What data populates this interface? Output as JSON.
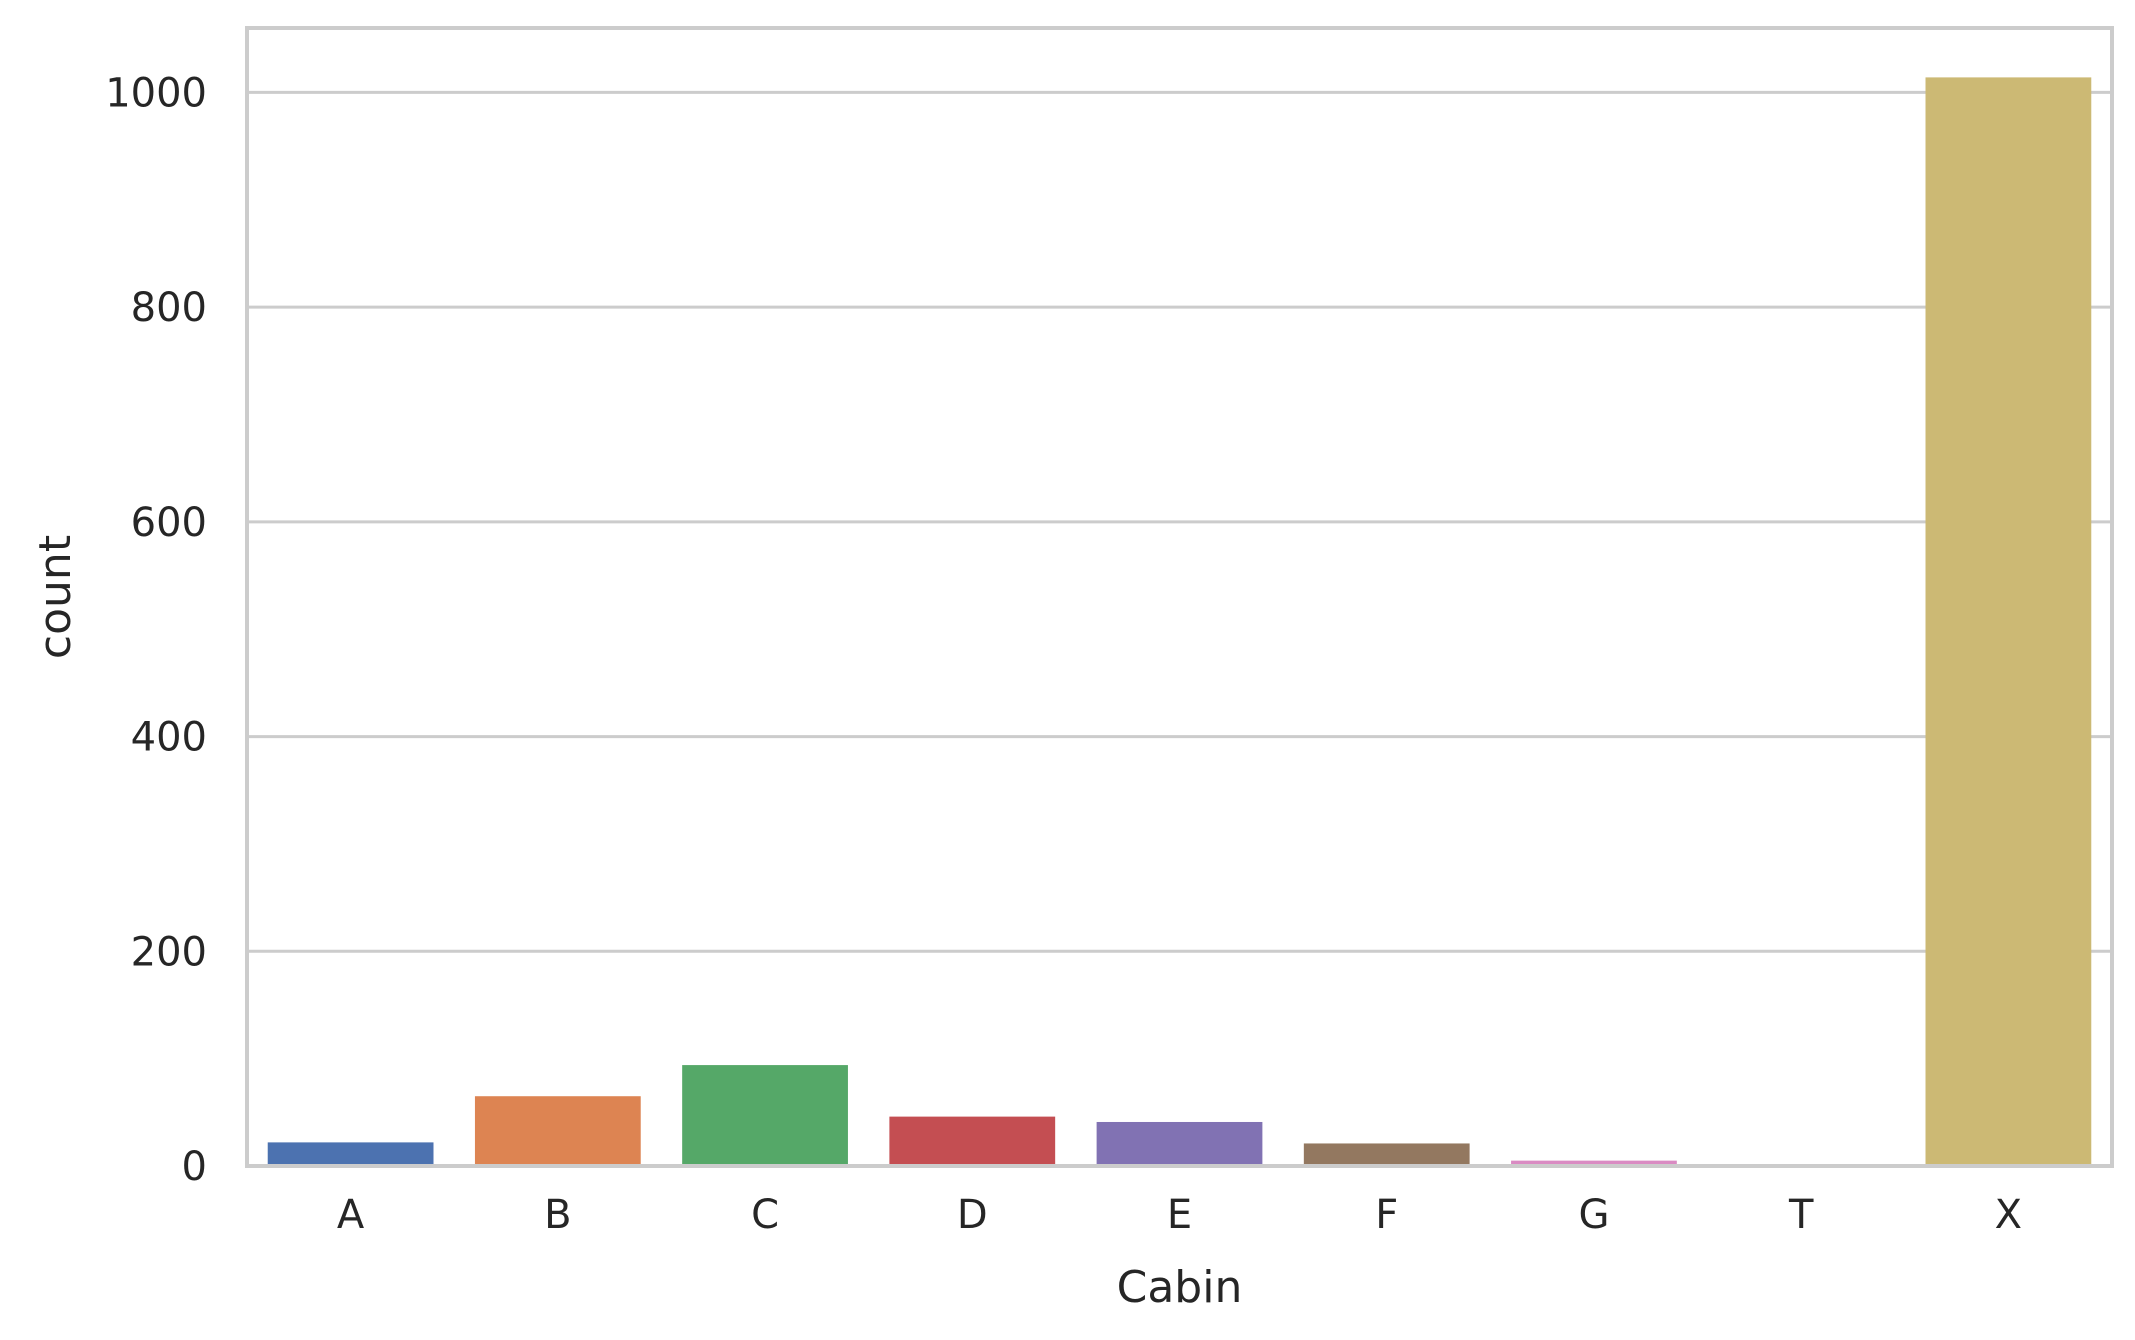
{
  "chart_data": {
    "type": "bar",
    "title": "",
    "xlabel": "Cabin",
    "ylabel": "count",
    "categories": [
      "A",
      "B",
      "C",
      "D",
      "E",
      "F",
      "G",
      "T",
      "X"
    ],
    "values": [
      22,
      65,
      94,
      46,
      41,
      21,
      5,
      1,
      1014
    ],
    "colors": [
      "#4c72b0",
      "#dd8452",
      "#55a868",
      "#c44e52",
      "#8172b3",
      "#937860",
      "#da8bc3",
      "#8c8c8c",
      "#ccb974"
    ],
    "yticks": [
      0,
      200,
      400,
      600,
      800,
      1000
    ],
    "ylim": [
      0,
      1060
    ],
    "grid": true
  }
}
